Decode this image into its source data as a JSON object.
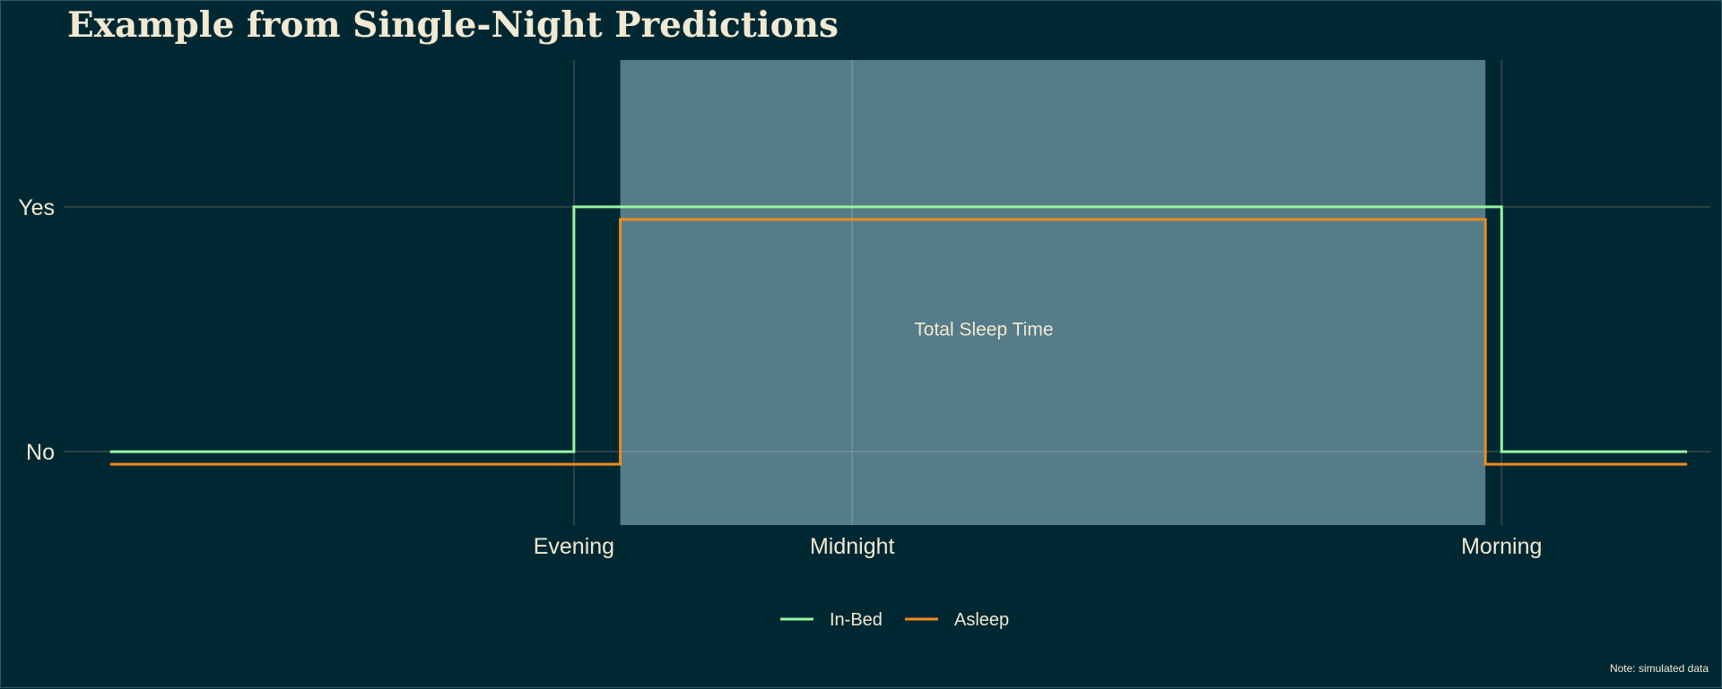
{
  "chart_data": {
    "type": "line",
    "title": "Example from Single-Night Predictions",
    "caption": "Note: simulated data",
    "shaded_region": {
      "label": "Total Sleep Time",
      "x_start": 1,
      "x_end": 19.65,
      "color": "#5a818d"
    },
    "x_ticks": [
      {
        "value": 0,
        "label": "Evening"
      },
      {
        "value": 6,
        "label": "Midnight"
      },
      {
        "value": 20,
        "label": "Morning"
      }
    ],
    "y_ticks": [
      {
        "value": 0,
        "label": "No"
      },
      {
        "value": 1,
        "label": "Yes"
      }
    ],
    "xlim": [
      -11,
      24.5
    ],
    "ylim": [
      -0.3,
      1.6
    ],
    "series": [
      {
        "name": "In-Bed",
        "color": "#98f5a0",
        "points": [
          [
            -10,
            0
          ],
          [
            0,
            0
          ],
          [
            0,
            1
          ],
          [
            20,
            1
          ],
          [
            20,
            0
          ],
          [
            24,
            0
          ]
        ]
      },
      {
        "name": "Asleep",
        "color": "#ef8a1b",
        "points": [
          [
            -10,
            0
          ],
          [
            1,
            0
          ],
          [
            1,
            1
          ],
          [
            19.65,
            1
          ],
          [
            19.65,
            0
          ],
          [
            24,
            0
          ]
        ]
      }
    ],
    "legend_position": "bottom"
  }
}
